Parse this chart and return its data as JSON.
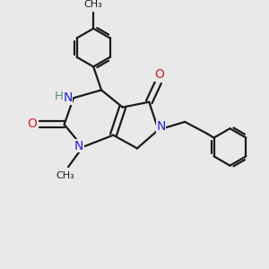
{
  "bg_color": "#e9e9e9",
  "bond_color": "#1a1a1a",
  "N_color": "#2222cc",
  "O_color": "#cc2222",
  "H_color": "#5a8888",
  "lw": 1.6,
  "xlim": [
    0,
    10
  ],
  "ylim": [
    0,
    10
  ]
}
